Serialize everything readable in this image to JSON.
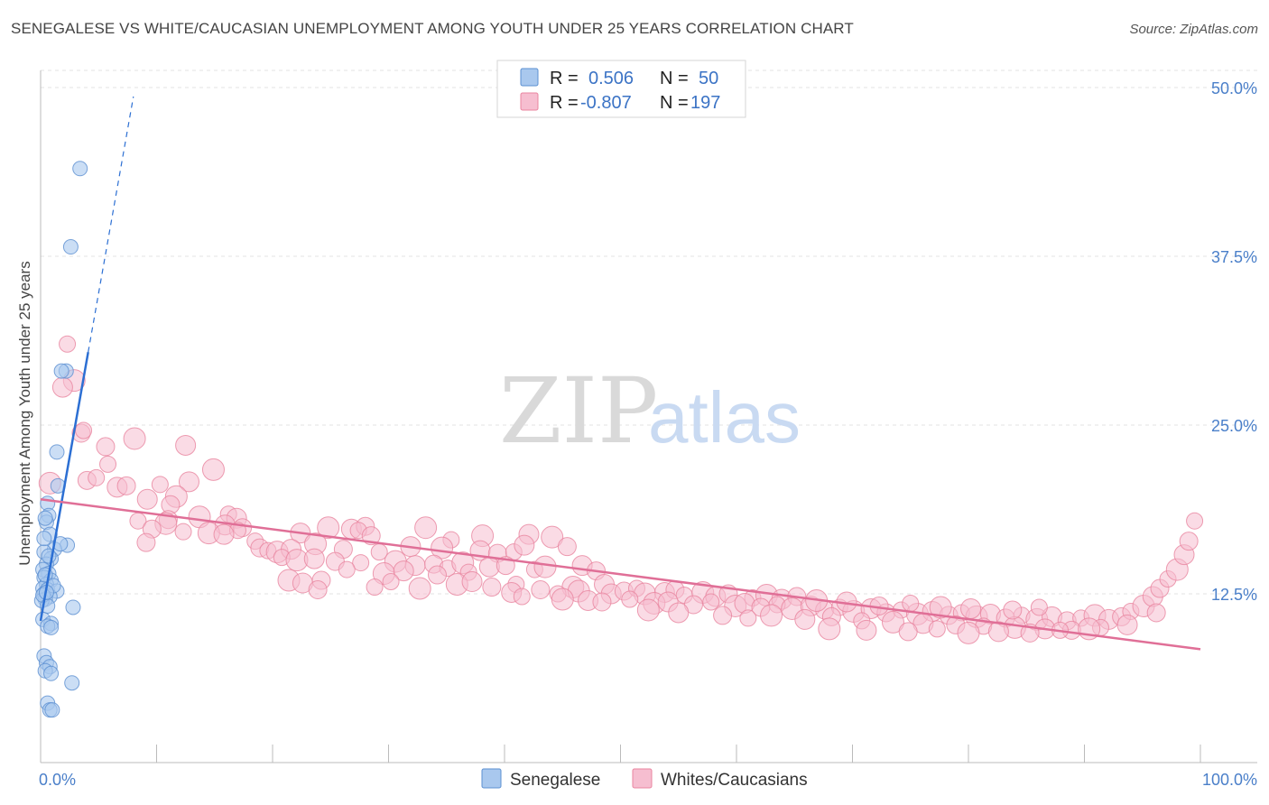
{
  "header": {
    "title": "SENEGALESE VS WHITE/CAUCASIAN UNEMPLOYMENT AMONG YOUTH UNDER 25 YEARS CORRELATION CHART",
    "source": "Source: ZipAtlas.com"
  },
  "watermark": {
    "part1": "ZIP",
    "part2": "atlas"
  },
  "legend": {
    "rows": [
      {
        "r_label": "R =",
        "r_value": "0.506",
        "n_label": "N =",
        "n_value": "50",
        "color": "#a9c8ee",
        "stroke": "#5b8fd1"
      },
      {
        "r_label": "R =",
        "r_value": "-0.807",
        "n_label": "N =",
        "n_value": "197",
        "color": "#f6bed0",
        "stroke": "#e9849f"
      }
    ]
  },
  "bottom_legend": [
    "Senegalese",
    "Whites/Caucasians"
  ],
  "chart_data": {
    "type": "scatter",
    "title": "SENEGALESE VS WHITE/CAUCASIAN UNEMPLOYMENT AMONG YOUTH UNDER 25 YEARS CORRELATION CHART",
    "xlabel": "",
    "ylabel": "Unemployment Among Youth under 25 years",
    "xlim": [
      0,
      100
    ],
    "ylim": [
      0,
      50
    ],
    "x_tick_labels": [
      "0.0%",
      "100.0%"
    ],
    "y_tick_labels": [
      "12.5%",
      "25.0%",
      "37.5%",
      "50.0%"
    ],
    "y_ticks": [
      12.5,
      25.0,
      37.5,
      50.0
    ],
    "series": [
      {
        "name": "Senegalese",
        "color": "#a9c8ee",
        "stroke": "#5b8fd1",
        "trend": {
          "x0": 0,
          "y0": 10.5,
          "x1": 4.1,
          "y1": 30.4,
          "dash_to_x": 8.0,
          "color": "#2c6fd3"
        },
        "points": [
          [
            3.4,
            44.0
          ],
          [
            2.6,
            38.2
          ],
          [
            2.2,
            29.0
          ],
          [
            1.8,
            29.0
          ],
          [
            1.4,
            23.0
          ],
          [
            1.5,
            20.5
          ],
          [
            0.6,
            19.2
          ],
          [
            0.7,
            18.3
          ],
          [
            0.5,
            17.8
          ],
          [
            0.4,
            18.1
          ],
          [
            0.8,
            16.9
          ],
          [
            2.3,
            16.1
          ],
          [
            1.2,
            15.8
          ],
          [
            1.7,
            16.2
          ],
          [
            0.3,
            15.6
          ],
          [
            0.9,
            15.1
          ],
          [
            0.5,
            14.7
          ],
          [
            0.2,
            14.3
          ],
          [
            0.7,
            14.0
          ],
          [
            0.3,
            13.7
          ],
          [
            0.9,
            13.5
          ],
          [
            0.5,
            13.2
          ],
          [
            0.2,
            12.9
          ],
          [
            0.6,
            12.8
          ],
          [
            1.4,
            12.7
          ],
          [
            0.3,
            12.5
          ],
          [
            0.8,
            12.3
          ],
          [
            0.4,
            12.1
          ],
          [
            0.1,
            12.0
          ],
          [
            2.8,
            11.5
          ],
          [
            0.2,
            10.6
          ],
          [
            0.9,
            10.3
          ],
          [
            0.6,
            10.1
          ],
          [
            0.3,
            7.9
          ],
          [
            0.5,
            7.4
          ],
          [
            0.8,
            7.1
          ],
          [
            0.4,
            6.8
          ],
          [
            0.9,
            6.6
          ],
          [
            2.7,
            5.9
          ],
          [
            0.6,
            4.4
          ],
          [
            0.8,
            3.9
          ],
          [
            1.0,
            3.9
          ],
          [
            0.2,
            12.4
          ],
          [
            0.4,
            13.9
          ],
          [
            0.7,
            15.3
          ],
          [
            1.1,
            13.1
          ],
          [
            0.3,
            16.6
          ],
          [
            0.6,
            11.6
          ],
          [
            0.9,
            10.0
          ],
          [
            0.5,
            12.6
          ]
        ]
      },
      {
        "name": "Whites/Caucasians",
        "color": "#f6bed0",
        "stroke": "#e9849f",
        "trend": {
          "x0": 0,
          "y0": 19.5,
          "x1": 100,
          "y1": 8.4,
          "color": "#e06f97"
        },
        "points": [
          [
            2.3,
            31.0
          ],
          [
            2.9,
            28.3
          ],
          [
            1.9,
            27.8
          ],
          [
            3.5,
            24.4
          ],
          [
            3.7,
            24.6
          ],
          [
            8.1,
            24.0
          ],
          [
            12.5,
            23.5
          ],
          [
            5.6,
            23.4
          ],
          [
            5.8,
            22.1
          ],
          [
            14.9,
            21.7
          ],
          [
            12.8,
            20.8
          ],
          [
            4.0,
            20.9
          ],
          [
            4.8,
            21.1
          ],
          [
            0.8,
            20.7
          ],
          [
            6.6,
            20.4
          ],
          [
            7.4,
            20.5
          ],
          [
            10.3,
            20.6
          ],
          [
            11.7,
            19.7
          ],
          [
            9.2,
            19.5
          ],
          [
            11.2,
            19.1
          ],
          [
            16.2,
            18.4
          ],
          [
            13.7,
            18.2
          ],
          [
            16.9,
            18.1
          ],
          [
            11.0,
            18.0
          ],
          [
            8.4,
            17.9
          ],
          [
            10.8,
            17.7
          ],
          [
            15.9,
            17.6
          ],
          [
            17.4,
            17.4
          ],
          [
            17.0,
            17.2
          ],
          [
            14.5,
            17.0
          ],
          [
            15.8,
            16.9
          ],
          [
            9.6,
            17.3
          ],
          [
            12.3,
            17.1
          ],
          [
            24.8,
            17.4
          ],
          [
            26.8,
            17.3
          ],
          [
            28.0,
            17.5
          ],
          [
            27.4,
            17.2
          ],
          [
            33.2,
            17.4
          ],
          [
            22.4,
            17.0
          ],
          [
            28.5,
            16.8
          ],
          [
            35.4,
            16.5
          ],
          [
            38.1,
            16.8
          ],
          [
            42.1,
            16.9
          ],
          [
            9.1,
            16.3
          ],
          [
            18.5,
            16.4
          ],
          [
            23.7,
            16.2
          ],
          [
            31.9,
            16.0
          ],
          [
            18.9,
            15.9
          ],
          [
            19.6,
            15.7
          ],
          [
            20.4,
            15.6
          ],
          [
            21.6,
            15.8
          ],
          [
            26.1,
            15.8
          ],
          [
            29.2,
            15.6
          ],
          [
            34.6,
            15.9
          ],
          [
            37.9,
            15.7
          ],
          [
            39.4,
            15.5
          ],
          [
            40.8,
            15.6
          ],
          [
            44.1,
            16.7
          ],
          [
            41.7,
            16.1
          ],
          [
            45.4,
            16.0
          ],
          [
            20.8,
            15.2
          ],
          [
            22.1,
            15.0
          ],
          [
            23.6,
            15.1
          ],
          [
            25.4,
            14.9
          ],
          [
            27.6,
            14.8
          ],
          [
            30.6,
            14.9
          ],
          [
            32.3,
            14.6
          ],
          [
            33.9,
            14.7
          ],
          [
            35.1,
            14.4
          ],
          [
            36.4,
            14.8
          ],
          [
            38.7,
            14.5
          ],
          [
            40.1,
            14.6
          ],
          [
            42.6,
            14.3
          ],
          [
            43.5,
            14.5
          ],
          [
            46.7,
            14.6
          ],
          [
            47.9,
            14.2
          ],
          [
            26.4,
            14.3
          ],
          [
            29.6,
            14.0
          ],
          [
            31.3,
            14.2
          ],
          [
            34.2,
            13.9
          ],
          [
            36.9,
            14.1
          ],
          [
            21.4,
            13.5
          ],
          [
            22.6,
            13.3
          ],
          [
            24.2,
            13.5
          ],
          [
            30.2,
            13.4
          ],
          [
            35.9,
            13.2
          ],
          [
            37.2,
            13.4
          ],
          [
            38.9,
            13.0
          ],
          [
            41.0,
            13.2
          ],
          [
            45.9,
            13.0
          ],
          [
            48.6,
            13.2
          ],
          [
            23.9,
            12.8
          ],
          [
            28.8,
            13.0
          ],
          [
            32.7,
            12.9
          ],
          [
            40.6,
            12.6
          ],
          [
            43.1,
            12.8
          ],
          [
            44.6,
            12.5
          ],
          [
            46.4,
            12.7
          ],
          [
            49.2,
            12.5
          ],
          [
            50.3,
            12.7
          ],
          [
            51.4,
            12.9
          ],
          [
            52.1,
            12.5
          ],
          [
            53.8,
            12.6
          ],
          [
            54.7,
            12.8
          ],
          [
            55.5,
            12.4
          ],
          [
            57.1,
            12.6
          ],
          [
            58.2,
            12.3
          ],
          [
            59.3,
            12.5
          ],
          [
            61.4,
            12.2
          ],
          [
            62.6,
            12.4
          ],
          [
            63.9,
            12.1
          ],
          [
            65.2,
            12.3
          ],
          [
            41.5,
            12.3
          ],
          [
            45.0,
            12.1
          ],
          [
            47.2,
            12.0
          ],
          [
            48.4,
            11.9
          ],
          [
            50.8,
            12.1
          ],
          [
            52.9,
            11.8
          ],
          [
            54.1,
            11.9
          ],
          [
            56.3,
            11.7
          ],
          [
            57.8,
            11.9
          ],
          [
            59.9,
            11.6
          ],
          [
            60.7,
            11.8
          ],
          [
            62.1,
            11.5
          ],
          [
            63.5,
            11.7
          ],
          [
            64.8,
            11.4
          ],
          [
            66.4,
            11.6
          ],
          [
            67.6,
            11.3
          ],
          [
            68.9,
            11.5
          ],
          [
            70.1,
            11.2
          ],
          [
            71.6,
            11.4
          ],
          [
            72.9,
            11.1
          ],
          [
            74.2,
            11.3
          ],
          [
            75.6,
            11.0
          ],
          [
            76.9,
            11.2
          ],
          [
            78.3,
            10.9
          ],
          [
            79.4,
            11.1
          ],
          [
            80.7,
            10.8
          ],
          [
            81.9,
            11.0
          ],
          [
            83.2,
            10.7
          ],
          [
            84.6,
            10.9
          ],
          [
            85.9,
            10.6
          ],
          [
            87.2,
            10.8
          ],
          [
            88.5,
            10.5
          ],
          [
            89.7,
            10.7
          ],
          [
            90.9,
            10.9
          ],
          [
            92.1,
            10.6
          ],
          [
            93.2,
            10.8
          ],
          [
            94.0,
            11.2
          ],
          [
            95.1,
            11.6
          ],
          [
            95.9,
            12.3
          ],
          [
            96.5,
            12.9
          ],
          [
            97.2,
            13.6
          ],
          [
            98.0,
            14.3
          ],
          [
            98.6,
            15.4
          ],
          [
            99.0,
            16.4
          ],
          [
            99.5,
            17.9
          ],
          [
            52.4,
            11.3
          ],
          [
            55.0,
            11.1
          ],
          [
            58.8,
            10.9
          ],
          [
            61.0,
            10.7
          ],
          [
            63.0,
            10.9
          ],
          [
            65.9,
            10.6
          ],
          [
            68.2,
            10.8
          ],
          [
            70.8,
            10.5
          ],
          [
            73.5,
            10.4
          ],
          [
            76.1,
            10.3
          ],
          [
            78.9,
            10.2
          ],
          [
            81.3,
            10.1
          ],
          [
            84.0,
            10.0
          ],
          [
            86.6,
            9.9
          ],
          [
            88.9,
            9.8
          ],
          [
            91.4,
            10.0
          ],
          [
            66.9,
            12.0
          ],
          [
            69.5,
            11.9
          ],
          [
            72.3,
            11.6
          ],
          [
            75.0,
            11.8
          ],
          [
            77.6,
            11.5
          ],
          [
            80.2,
            11.4
          ],
          [
            83.8,
            11.3
          ],
          [
            86.1,
            11.5
          ],
          [
            68.0,
            9.9
          ],
          [
            71.2,
            9.8
          ],
          [
            74.8,
            9.7
          ],
          [
            77.3,
            9.9
          ],
          [
            80.0,
            9.6
          ],
          [
            82.6,
            9.7
          ],
          [
            85.3,
            9.6
          ],
          [
            87.9,
            9.8
          ],
          [
            90.4,
            9.9
          ],
          [
            93.7,
            10.2
          ],
          [
            96.2,
            11.1
          ]
        ]
      }
    ]
  }
}
